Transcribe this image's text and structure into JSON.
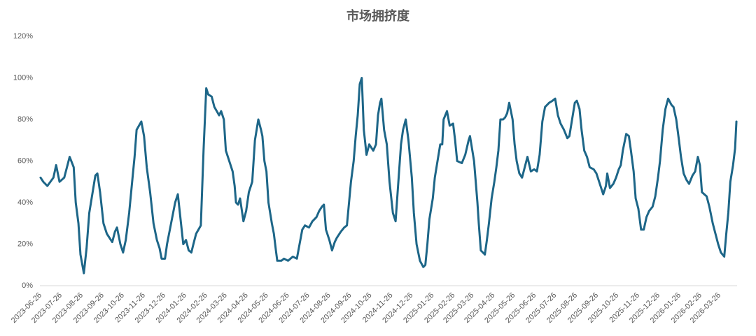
{
  "chart_data": {
    "type": "line",
    "title": "市场拥挤度",
    "x": [
      "2023-06-26",
      "2023-06-30",
      "2023-07-06",
      "2023-07-15",
      "2023-07-19",
      "2023-07-24",
      "2023-07-31",
      "2023-08-08",
      "2023-08-14",
      "2023-08-17",
      "2023-08-21",
      "2023-08-24",
      "2023-08-29",
      "2023-09-02",
      "2023-09-06",
      "2023-09-11",
      "2023-09-15",
      "2023-09-18",
      "2023-09-22",
      "2023-09-27",
      "2023-10-02",
      "2023-10-10",
      "2023-10-14",
      "2023-10-17",
      "2023-10-22",
      "2023-10-26",
      "2023-10-30",
      "2023-11-04",
      "2023-11-09",
      "2023-11-12",
      "2023-11-15",
      "2023-11-22",
      "2023-11-26",
      "2023-11-30",
      "2023-12-05",
      "2023-12-10",
      "2023-12-15",
      "2023-12-19",
      "2023-12-22",
      "2023-12-27",
      "2023-12-30",
      "2024-01-05",
      "2024-01-11",
      "2024-01-15",
      "2024-01-19",
      "2024-01-23",
      "2024-01-27",
      "2024-01-31",
      "2024-02-04",
      "2024-02-07",
      "2024-02-11",
      "2024-02-18",
      "2024-02-22",
      "2024-02-26",
      "2024-02-29",
      "2024-03-05",
      "2024-03-09",
      "2024-03-16",
      "2024-03-19",
      "2024-03-23",
      "2024-03-26",
      "2024-03-31",
      "2024-04-05",
      "2024-04-08",
      "2024-04-10",
      "2024-04-13",
      "2024-04-16",
      "2024-04-21",
      "2024-04-25",
      "2024-04-29",
      "2024-05-04",
      "2024-05-08",
      "2024-05-13",
      "2024-05-17",
      "2024-05-19",
      "2024-05-22",
      "2024-05-25",
      "2024-05-28",
      "2024-06-02",
      "2024-06-05",
      "2024-06-08",
      "2024-06-10",
      "2024-06-16",
      "2024-06-20",
      "2024-06-26",
      "2024-07-03",
      "2024-07-09",
      "2024-07-13",
      "2024-07-17",
      "2024-07-21",
      "2024-07-27",
      "2024-08-01",
      "2024-08-07",
      "2024-08-11",
      "2024-08-15",
      "2024-08-18",
      "2024-08-21",
      "2024-08-26",
      "2024-08-30",
      "2024-09-03",
      "2024-09-06",
      "2024-09-12",
      "2024-09-17",
      "2024-09-21",
      "2024-09-27",
      "2024-10-01",
      "2024-10-04",
      "2024-10-07",
      "2024-10-10",
      "2024-10-13",
      "2024-10-16",
      "2024-10-20",
      "2024-10-24",
      "2024-10-30",
      "2024-11-03",
      "2024-11-06",
      "2024-11-09",
      "2024-11-11",
      "2024-11-15",
      "2024-11-19",
      "2024-11-23",
      "2024-11-28",
      "2024-12-02",
      "2024-12-05",
      "2024-12-10",
      "2024-12-13",
      "2024-12-17",
      "2024-12-21",
      "2024-12-26",
      "2024-12-29",
      "2025-01-02",
      "2025-01-07",
      "2025-01-12",
      "2025-01-15",
      "2025-01-18",
      "2025-01-21",
      "2025-01-26",
      "2025-01-29",
      "2025-02-02",
      "2025-02-06",
      "2025-02-09",
      "2025-02-11",
      "2025-02-16",
      "2025-02-20",
      "2025-02-25",
      "2025-02-28",
      "2025-03-03",
      "2025-03-10",
      "2025-03-15",
      "2025-03-20",
      "2025-03-22",
      "2025-03-28",
      "2025-03-30",
      "2025-04-02",
      "2025-04-04",
      "2025-04-07",
      "2025-04-13",
      "2025-04-16",
      "2025-04-19",
      "2025-04-23",
      "2025-04-27",
      "2025-04-30",
      "2025-05-03",
      "2025-05-06",
      "2025-05-10",
      "2025-05-13",
      "2025-05-16",
      "2025-05-19",
      "2025-05-24",
      "2025-05-27",
      "2025-05-30",
      "2025-06-03",
      "2025-06-07",
      "2025-06-11",
      "2025-06-15",
      "2025-06-20",
      "2025-06-25",
      "2025-06-29",
      "2025-07-03",
      "2025-07-07",
      "2025-07-11",
      "2025-07-17",
      "2025-07-22",
      "2025-07-26",
      "2025-07-30",
      "2025-08-03",
      "2025-08-08",
      "2025-08-13",
      "2025-08-16",
      "2025-08-20",
      "2025-08-24",
      "2025-08-27",
      "2025-08-31",
      "2025-09-03",
      "2025-09-07",
      "2025-09-11",
      "2025-09-15",
      "2025-09-21",
      "2025-09-25",
      "2025-10-01",
      "2025-10-05",
      "2025-10-09",
      "2025-10-11",
      "2025-10-15",
      "2025-10-20",
      "2025-10-24",
      "2025-10-28",
      "2025-10-31",
      "2025-11-03",
      "2025-11-08",
      "2025-11-12",
      "2025-11-15",
      "2025-11-19",
      "2025-11-22",
      "2025-11-26",
      "2025-11-30",
      "2025-12-04",
      "2025-12-08",
      "2025-12-12",
      "2025-12-17",
      "2025-12-21",
      "2025-12-25",
      "2025-12-28",
      "2026-01-01",
      "2026-01-05",
      "2026-01-09",
      "2026-01-14",
      "2026-01-17",
      "2026-01-21",
      "2026-01-25",
      "2026-01-28",
      "2026-02-01",
      "2026-02-05",
      "2026-02-09",
      "2026-02-14",
      "2026-02-18",
      "2026-02-22",
      "2026-02-25",
      "2026-02-28",
      "2026-03-07",
      "2026-03-11",
      "2026-03-16",
      "2026-03-20",
      "2026-03-24",
      "2026-03-28",
      "2026-04-02",
      "2026-04-05",
      "2026-04-08",
      "2026-04-11",
      "2026-04-15",
      "2026-04-18",
      "2026-04-20"
    ],
    "values": [
      52,
      50,
      48,
      52,
      58,
      50,
      52,
      62,
      57,
      40,
      30,
      15,
      6,
      18,
      35,
      45,
      53,
      54,
      45,
      30,
      25,
      21,
      26,
      28,
      20,
      16,
      22,
      35,
      52,
      62,
      75,
      79,
      72,
      57,
      45,
      30,
      22,
      18,
      13,
      13,
      20,
      30,
      40,
      44,
      32,
      20,
      22,
      17,
      16,
      20,
      25,
      29,
      65,
      95,
      92,
      91,
      86,
      82,
      84,
      80,
      65,
      60,
      55,
      48,
      40,
      39,
      42,
      31,
      36,
      45,
      50,
      70,
      80,
      75,
      72,
      60,
      55,
      40,
      30,
      25,
      17,
      12,
      12,
      13,
      12,
      14,
      13,
      20,
      27,
      29,
      28,
      31,
      33,
      36,
      38,
      39,
      27,
      22,
      17,
      21,
      23,
      26,
      28,
      29,
      50,
      60,
      72,
      82,
      97,
      100,
      75,
      63,
      68,
      65,
      68,
      82,
      88,
      90,
      75,
      68,
      50,
      35,
      31,
      45,
      68,
      75,
      80,
      70,
      52,
      35,
      20,
      12,
      9,
      10,
      20,
      32,
      42,
      52,
      60,
      68,
      68,
      80,
      84,
      77,
      78,
      70,
      60,
      59,
      63,
      70,
      72,
      60,
      52,
      40,
      30,
      17,
      15,
      22,
      30,
      42,
      50,
      57,
      65,
      80,
      80,
      81,
      83,
      88,
      80,
      68,
      60,
      54,
      52,
      57,
      62,
      55,
      56,
      55,
      63,
      79,
      86,
      88,
      89,
      90,
      82,
      78,
      75,
      71,
      72,
      80,
      88,
      89,
      85,
      75,
      65,
      62,
      57,
      56,
      54,
      48,
      44,
      48,
      54,
      47,
      49,
      52,
      56,
      58,
      65,
      73,
      72,
      65,
      55,
      42,
      37,
      27,
      27,
      33,
      36,
      38,
      43,
      52,
      60,
      75,
      85,
      90,
      87,
      86,
      80,
      70,
      62,
      54,
      51,
      49,
      53,
      55,
      62,
      58,
      45,
      43,
      38,
      30,
      25,
      20,
      16,
      14,
      25,
      35,
      50,
      58,
      66,
      79
    ],
    "color": "#1d6688",
    "xlim": [
      "2023-06-25",
      "2026-04-21"
    ],
    "xticks": [
      "2023-06-26",
      "2023-07-26",
      "2023-08-26",
      "2023-09-26",
      "2023-10-26",
      "2023-11-26",
      "2023-12-26",
      "2024-01-26",
      "2024-02-26",
      "2024-03-26",
      "2024-04-26",
      "2024-05-26",
      "2024-06-26",
      "2024-07-26",
      "2024-08-26",
      "2024-09-26",
      "2024-10-26",
      "2024-11-26",
      "2024-12-26",
      "2025-01-26",
      "2025-02-26",
      "2025-03-26",
      "2025-04-26",
      "2025-05-26",
      "2025-06-26",
      "2025-07-26",
      "2025-08-26",
      "2025-09-26",
      "2025-10-26",
      "2025-11-26",
      "2025-12-26",
      "2026-01-26",
      "2026-02-26",
      "2026-03-26"
    ],
    "ylim": [
      0,
      120
    ],
    "yticks": [
      {
        "value": 0,
        "label": "0%"
      },
      {
        "value": 20,
        "label": "20%"
      },
      {
        "value": 40,
        "label": "40%"
      },
      {
        "value": 60,
        "label": "60%"
      },
      {
        "value": 80,
        "label": "80%"
      },
      {
        "value": 100,
        "label": "100%"
      },
      {
        "value": 120,
        "label": "120%"
      }
    ],
    "grid": false
  }
}
